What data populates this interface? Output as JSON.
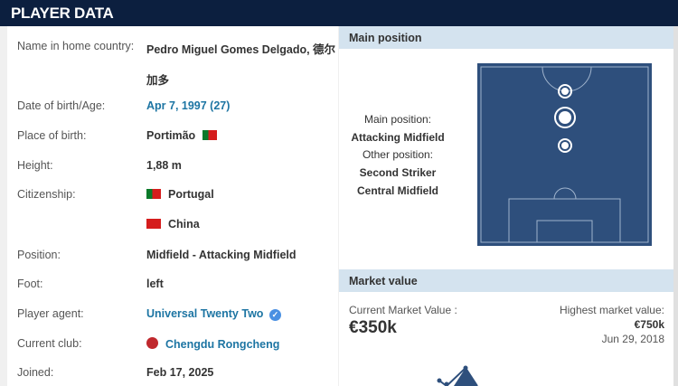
{
  "header": {
    "title": "PLAYER DATA"
  },
  "player": {
    "name_label": "Name in home country:",
    "name_value": "Pedro Miguel Gomes Delgado, 德尔",
    "name_value_2": "加多",
    "dob_label": "Date of birth/Age:",
    "dob_value": "Apr 7, 1997 (27)",
    "pob_label": "Place of birth:",
    "pob_value": "Portimão",
    "height_label": "Height:",
    "height_value": "1,88 m",
    "citizenship_label": "Citizenship:",
    "citizenship": [
      "Portugal",
      "China"
    ],
    "position_label": "Position:",
    "position_value": "Midfield - Attacking Midfield",
    "foot_label": "Foot:",
    "foot_value": "left",
    "agent_label": "Player agent:",
    "agent_value": "Universal Twenty Two",
    "club_label": "Current club:",
    "club_value": "Chengdu Rongcheng",
    "joined_label": "Joined:",
    "joined_value": "Feb 17, 2025"
  },
  "position_box": {
    "title": "Main position",
    "main_label": "Main position:",
    "main_value": "Attacking Midfield",
    "other_label": "Other position:",
    "other_values": [
      "Second Striker",
      "Central Midfield"
    ]
  },
  "market": {
    "title": "Market value",
    "current_label": "Current Market Value :",
    "current_value": "€350k",
    "highest_label": "Highest market value:",
    "highest_value": "€750k",
    "highest_date": "Jun 29, 2018"
  },
  "colors": {
    "header": "#0c1f3f",
    "link": "#1d75a3",
    "pitch": "#2e4f7c",
    "section": "#d4e3ef"
  }
}
